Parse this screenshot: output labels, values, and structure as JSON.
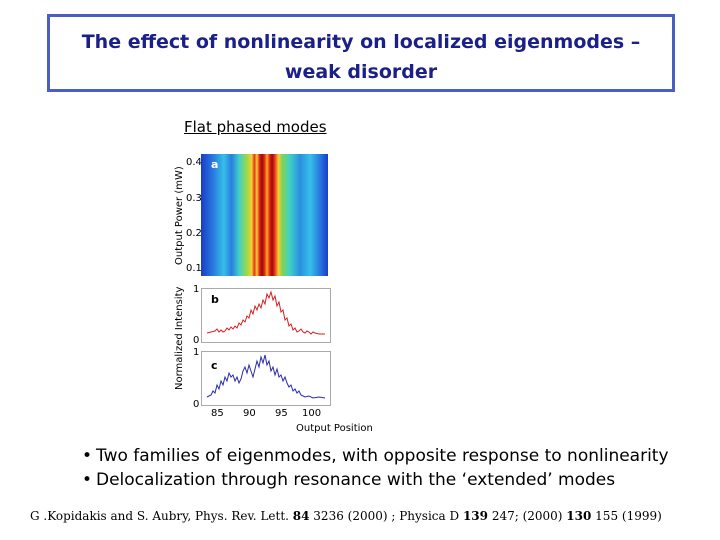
{
  "slide": {
    "title_line1": "The effect of nonlinearity on localized eigenmodes –",
    "title_line2": "weak disorder",
    "subtitle": "Flat phased modes",
    "colors": {
      "title": "#1a1f8a",
      "frame": "#4a5fc1",
      "curve_b": "#d62020",
      "curve_c": "#2a2aa8"
    }
  },
  "figure": {
    "panel_a": {
      "letter": "a",
      "ylabel": "Output Power (mW)",
      "yticks": [
        "0.4",
        "0.3",
        "0.2",
        "0.1"
      ]
    },
    "panel_b": {
      "letter": "b",
      "yticks": [
        "1",
        "0"
      ]
    },
    "panel_c": {
      "letter": "c",
      "yticks": [
        "1",
        "0"
      ]
    },
    "ylabel_bc": "Normalized Intensity",
    "xticks": [
      "85",
      "90",
      "95",
      "100"
    ],
    "xlabel": "Output Position"
  },
  "bullets": [
    "Two families of eigenmodes, with opposite response to nonlinearity",
    "Delocalization through resonance with the ‘extended’ modes"
  ],
  "citation": {
    "pre": "G .Kopidakis and S. Aubry, Phys. Rev. Lett. ",
    "vol1": "84",
    "mid1": " 3236  (2000) ; Physica D ",
    "vol2": "139",
    "mid2": " 247;  (2000) ",
    "vol3": "130",
    "post": " 155 (1999)"
  }
}
